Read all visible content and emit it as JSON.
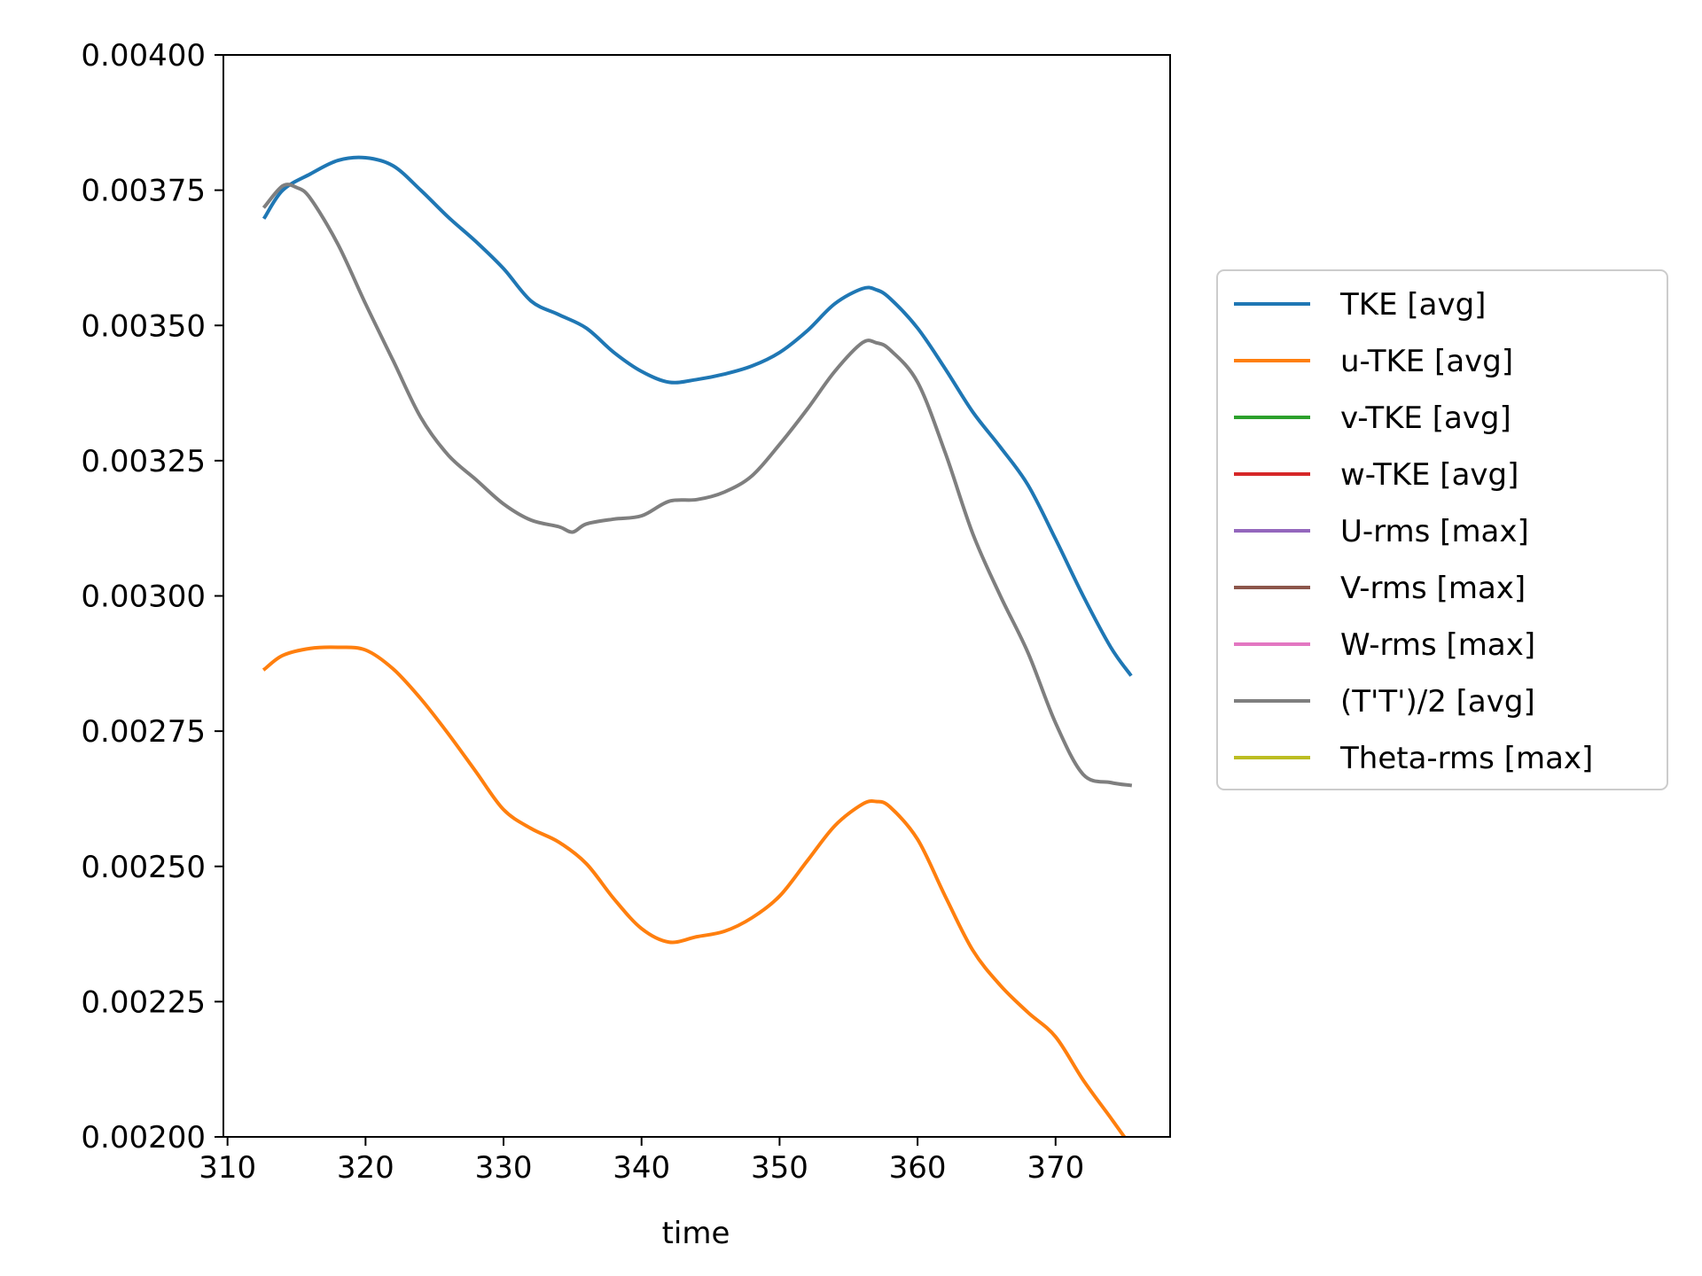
{
  "chart_data": {
    "type": "line",
    "title": "",
    "xlabel": "time",
    "ylabel": "",
    "xlim": [
      309.7,
      378.3
    ],
    "ylim": [
      0.002,
      0.004
    ],
    "x_ticks": [
      310,
      320,
      330,
      340,
      350,
      360,
      370
    ],
    "x_tick_labels": [
      "310",
      "320",
      "330",
      "340",
      "350",
      "360",
      "370"
    ],
    "y_ticks": [
      0.002,
      0.00225,
      0.0025,
      0.00275,
      0.003,
      0.00325,
      0.0035,
      0.00375,
      0.004
    ],
    "y_tick_labels": [
      "0.00200",
      "0.00225",
      "0.00250",
      "0.00275",
      "0.00300",
      "0.00325",
      "0.00350",
      "0.00375",
      "0.00400"
    ],
    "grid": false,
    "legend_position": "outside-right",
    "series": [
      {
        "name": "TKE [avg]",
        "color": "#1f77b4",
        "x": [
          312.7,
          314,
          316,
          318,
          320,
          322,
          324,
          326,
          328,
          330,
          332,
          334,
          336,
          338,
          340,
          342,
          344,
          346,
          348,
          350,
          352,
          354,
          356,
          357,
          358,
          360,
          362,
          364,
          366,
          368,
          370,
          372,
          374,
          375.4
        ],
        "y": [
          0.0037,
          0.00375,
          0.00378,
          0.003805,
          0.00381,
          0.003795,
          0.00375,
          0.0037,
          0.003655,
          0.003605,
          0.003545,
          0.00352,
          0.003495,
          0.00345,
          0.003415,
          0.003395,
          0.0034,
          0.00341,
          0.003425,
          0.00345,
          0.00349,
          0.00354,
          0.003568,
          0.003566,
          0.00355,
          0.003495,
          0.00342,
          0.00334,
          0.003275,
          0.003205,
          0.003105,
          0.003,
          0.002905,
          0.002855
        ]
      },
      {
        "name": "u-TKE [avg]",
        "color": "#ff7f0e",
        "x": [
          312.7,
          314,
          316,
          318,
          320,
          322,
          324,
          326,
          328,
          330,
          332,
          334,
          336,
          338,
          340,
          342,
          344,
          346,
          348,
          350,
          352,
          354,
          356,
          357,
          358,
          360,
          362,
          364,
          366,
          368,
          370,
          372,
          374,
          375.4
        ],
        "y": [
          0.002865,
          0.00289,
          0.002903,
          0.002905,
          0.0029,
          0.002865,
          0.00281,
          0.002745,
          0.002675,
          0.002605,
          0.00257,
          0.002545,
          0.002505,
          0.00244,
          0.002385,
          0.00236,
          0.00237,
          0.00238,
          0.002405,
          0.002445,
          0.00251,
          0.002575,
          0.002615,
          0.00262,
          0.00261,
          0.00255,
          0.002445,
          0.002345,
          0.00228,
          0.00223,
          0.002185,
          0.002105,
          0.002035,
          0.001985
        ]
      },
      {
        "name": "v-TKE [avg]",
        "color": "#2ca02c",
        "x": [],
        "y": []
      },
      {
        "name": "w-TKE [avg]",
        "color": "#d62728",
        "x": [],
        "y": []
      },
      {
        "name": "U-rms [max]",
        "color": "#9467bd",
        "x": [],
        "y": []
      },
      {
        "name": "V-rms [max]",
        "color": "#8c564b",
        "x": [],
        "y": []
      },
      {
        "name": "W-rms [max]",
        "color": "#e377c2",
        "x": [],
        "y": []
      },
      {
        "name": "(T'T')/2 [avg]",
        "color": "#7f7f7f",
        "x": [
          312.7,
          314,
          315,
          316,
          318,
          320,
          322,
          324,
          326,
          328,
          330,
          332,
          334,
          335,
          336,
          338,
          340,
          342,
          344,
          346,
          348,
          350,
          352,
          354,
          356,
          357,
          358,
          360,
          362,
          364,
          366,
          368,
          370,
          372,
          374,
          375.4
        ],
        "y": [
          0.00372,
          0.003758,
          0.003755,
          0.003735,
          0.00365,
          0.00354,
          0.003435,
          0.00333,
          0.00326,
          0.003215,
          0.00317,
          0.00314,
          0.003128,
          0.003118,
          0.003133,
          0.003142,
          0.003148,
          0.003175,
          0.003178,
          0.003192,
          0.003222,
          0.00328,
          0.003345,
          0.003415,
          0.003468,
          0.003468,
          0.003455,
          0.003395,
          0.003265,
          0.003115,
          0.003,
          0.002895,
          0.002765,
          0.00267,
          0.002655,
          0.00265
        ]
      },
      {
        "name": "Theta-rms [max]",
        "color": "#bcbd22",
        "x": [],
        "y": []
      }
    ]
  }
}
